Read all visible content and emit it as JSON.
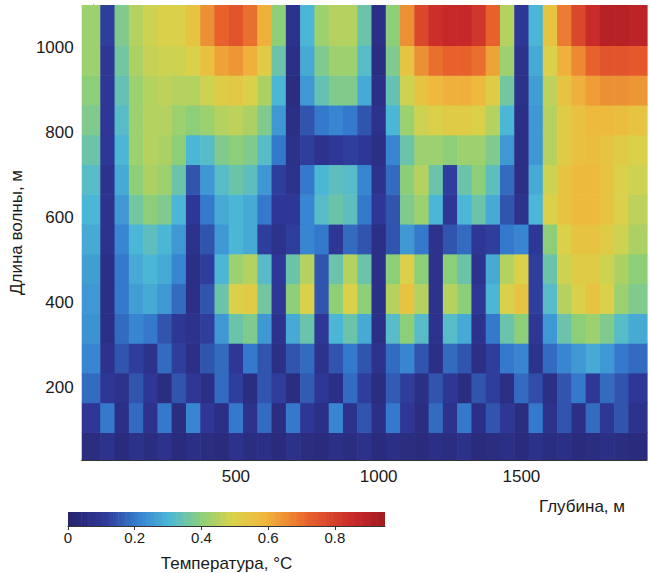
{
  "chart_data": {
    "type": "heatmap",
    "x_label": "Глубина, м",
    "y_label": "Длина волны, м",
    "xlim": [
      -40,
      1940
    ],
    "xticks": [
      500,
      1000,
      1500
    ],
    "ylim": [
      30,
      1100
    ],
    "yticks": [
      200,
      400,
      600,
      800,
      1000
    ],
    "x": [
      0,
      50,
      100,
      150,
      200,
      250,
      300,
      350,
      400,
      450,
      500,
      550,
      600,
      650,
      700,
      750,
      800,
      850,
      900,
      950,
      1000,
      1050,
      1100,
      1150,
      1200,
      1250,
      1300,
      1350,
      1400,
      1450,
      1500,
      1550,
      1600,
      1650,
      1700,
      1750,
      1800,
      1850,
      1900
    ],
    "y": [
      60,
      130,
      200,
      270,
      340,
      410,
      480,
      550,
      620,
      690,
      760,
      830,
      900,
      970,
      1040
    ],
    "values": [
      [
        0.05,
        0.08,
        0.04,
        0.07,
        0.05,
        0.08,
        0.04,
        0.06,
        0.05,
        0.04,
        0.08,
        0.05,
        0.06,
        0.04,
        0.07,
        0.05,
        0.04,
        0.06,
        0.05,
        0.07,
        0.04,
        0.06,
        0.05,
        0.04,
        0.06,
        0.05,
        0.07,
        0.04,
        0.05,
        0.06,
        0.04,
        0.07,
        0.05,
        0.06,
        0.04,
        0.05,
        0.06,
        0.05,
        0.04
      ],
      [
        0.1,
        0.2,
        0.06,
        0.18,
        0.08,
        0.2,
        0.05,
        0.22,
        0.1,
        0.06,
        0.2,
        0.08,
        0.18,
        0.05,
        0.2,
        0.1,
        0.06,
        0.22,
        0.08,
        0.15,
        0.06,
        0.2,
        0.1,
        0.05,
        0.18,
        0.08,
        0.2,
        0.06,
        0.15,
        0.1,
        0.05,
        0.2,
        0.08,
        0.15,
        0.06,
        0.18,
        0.1,
        0.15,
        0.08
      ],
      [
        0.18,
        0.1,
        0.08,
        0.15,
        0.1,
        0.05,
        0.15,
        0.1,
        0.06,
        0.18,
        0.12,
        0.05,
        0.15,
        0.12,
        0.05,
        0.16,
        0.1,
        0.06,
        0.18,
        0.12,
        0.05,
        0.16,
        0.12,
        0.06,
        0.15,
        0.1,
        0.05,
        0.15,
        0.12,
        0.06,
        0.18,
        0.14,
        0.06,
        0.15,
        0.2,
        0.1,
        0.18,
        0.15,
        0.1
      ],
      [
        0.22,
        0.08,
        0.15,
        0.12,
        0.08,
        0.18,
        0.12,
        0.06,
        0.15,
        0.18,
        0.1,
        0.2,
        0.15,
        0.06,
        0.15,
        0.18,
        0.08,
        0.15,
        0.2,
        0.15,
        0.08,
        0.18,
        0.22,
        0.15,
        0.06,
        0.18,
        0.15,
        0.06,
        0.12,
        0.2,
        0.22,
        0.08,
        0.18,
        0.22,
        0.25,
        0.28,
        0.25,
        0.2,
        0.18
      ],
      [
        0.24,
        0.06,
        0.18,
        0.22,
        0.2,
        0.15,
        0.1,
        0.08,
        0.12,
        0.25,
        0.35,
        0.38,
        0.25,
        0.08,
        0.28,
        0.35,
        0.1,
        0.3,
        0.35,
        0.28,
        0.06,
        0.32,
        0.4,
        0.32,
        0.08,
        0.32,
        0.28,
        0.08,
        0.2,
        0.35,
        0.4,
        0.1,
        0.25,
        0.35,
        0.4,
        0.42,
        0.38,
        0.32,
        0.28
      ],
      [
        0.25,
        0.06,
        0.2,
        0.26,
        0.28,
        0.25,
        0.18,
        0.06,
        0.15,
        0.35,
        0.5,
        0.52,
        0.36,
        0.1,
        0.4,
        0.5,
        0.15,
        0.4,
        0.5,
        0.4,
        0.06,
        0.45,
        0.55,
        0.45,
        0.08,
        0.45,
        0.4,
        0.1,
        0.3,
        0.5,
        0.55,
        0.12,
        0.32,
        0.45,
        0.5,
        0.55,
        0.5,
        0.42,
        0.38
      ],
      [
        0.26,
        0.06,
        0.2,
        0.28,
        0.3,
        0.28,
        0.22,
        0.06,
        0.12,
        0.3,
        0.42,
        0.45,
        0.32,
        0.1,
        0.35,
        0.45,
        0.15,
        0.35,
        0.45,
        0.35,
        0.06,
        0.4,
        0.5,
        0.4,
        0.08,
        0.4,
        0.35,
        0.08,
        0.28,
        0.45,
        0.5,
        0.12,
        0.35,
        0.48,
        0.52,
        0.52,
        0.48,
        0.44,
        0.4
      ],
      [
        0.28,
        0.08,
        0.22,
        0.3,
        0.33,
        0.3,
        0.25,
        0.08,
        0.15,
        0.25,
        0.3,
        0.28,
        0.12,
        0.08,
        0.12,
        0.22,
        0.2,
        0.1,
        0.18,
        0.15,
        0.06,
        0.15,
        0.25,
        0.2,
        0.08,
        0.15,
        0.18,
        0.1,
        0.12,
        0.2,
        0.22,
        0.1,
        0.4,
        0.5,
        0.55,
        0.55,
        0.52,
        0.48,
        0.44
      ],
      [
        0.3,
        0.08,
        0.25,
        0.36,
        0.4,
        0.38,
        0.3,
        0.1,
        0.2,
        0.28,
        0.3,
        0.28,
        0.2,
        0.1,
        0.1,
        0.22,
        0.32,
        0.35,
        0.33,
        0.2,
        0.1,
        0.15,
        0.38,
        0.42,
        0.3,
        0.1,
        0.3,
        0.35,
        0.28,
        0.15,
        0.08,
        0.3,
        0.5,
        0.55,
        0.58,
        0.58,
        0.55,
        0.5,
        0.46
      ],
      [
        0.32,
        0.08,
        0.28,
        0.4,
        0.44,
        0.42,
        0.35,
        0.15,
        0.25,
        0.32,
        0.35,
        0.33,
        0.25,
        0.12,
        0.08,
        0.2,
        0.3,
        0.33,
        0.32,
        0.22,
        0.08,
        0.18,
        0.4,
        0.45,
        0.35,
        0.12,
        0.35,
        0.4,
        0.33,
        0.18,
        0.06,
        0.28,
        0.48,
        0.55,
        0.58,
        0.58,
        0.55,
        0.5,
        0.48
      ],
      [
        0.35,
        0.1,
        0.3,
        0.42,
        0.45,
        0.44,
        0.4,
        0.3,
        0.32,
        0.38,
        0.4,
        0.38,
        0.32,
        0.2,
        0.07,
        0.12,
        0.08,
        0.1,
        0.12,
        0.1,
        0.06,
        0.22,
        0.35,
        0.42,
        0.42,
        0.4,
        0.42,
        0.42,
        0.38,
        0.25,
        0.06,
        0.25,
        0.45,
        0.52,
        0.56,
        0.57,
        0.55,
        0.52,
        0.5
      ],
      [
        0.38,
        0.1,
        0.32,
        0.42,
        0.45,
        0.45,
        0.42,
        0.4,
        0.42,
        0.45,
        0.46,
        0.44,
        0.38,
        0.25,
        0.06,
        0.15,
        0.2,
        0.22,
        0.2,
        0.15,
        0.08,
        0.3,
        0.42,
        0.48,
        0.5,
        0.52,
        0.52,
        0.5,
        0.45,
        0.3,
        0.06,
        0.25,
        0.45,
        0.52,
        0.56,
        0.58,
        0.58,
        0.57,
        0.55
      ],
      [
        0.4,
        0.1,
        0.34,
        0.42,
        0.45,
        0.46,
        0.45,
        0.45,
        0.48,
        0.52,
        0.53,
        0.5,
        0.44,
        0.3,
        0.05,
        0.25,
        0.34,
        0.38,
        0.38,
        0.28,
        0.06,
        0.34,
        0.48,
        0.55,
        0.58,
        0.6,
        0.6,
        0.58,
        0.52,
        0.36,
        0.07,
        0.26,
        0.46,
        0.55,
        0.6,
        0.63,
        0.65,
        0.65,
        0.64
      ],
      [
        0.42,
        0.1,
        0.36,
        0.44,
        0.47,
        0.48,
        0.48,
        0.5,
        0.56,
        0.62,
        0.64,
        0.6,
        0.52,
        0.35,
        0.06,
        0.28,
        0.38,
        0.42,
        0.42,
        0.32,
        0.05,
        0.38,
        0.55,
        0.65,
        0.7,
        0.72,
        0.72,
        0.7,
        0.62,
        0.42,
        0.08,
        0.28,
        0.5,
        0.6,
        0.66,
        0.72,
        0.75,
        0.75,
        0.74
      ],
      [
        0.42,
        0.12,
        0.38,
        0.45,
        0.48,
        0.5,
        0.5,
        0.55,
        0.65,
        0.72,
        0.75,
        0.7,
        0.6,
        0.4,
        0.08,
        0.3,
        0.42,
        0.45,
        0.45,
        0.35,
        0.06,
        0.4,
        0.65,
        0.78,
        0.84,
        0.86,
        0.86,
        0.82,
        0.72,
        0.45,
        0.1,
        0.3,
        0.55,
        0.68,
        0.78,
        0.85,
        0.9,
        0.9,
        0.88
      ]
    ],
    "colorbar": {
      "label": "Температура, °C",
      "range": [
        0,
        0.95
      ],
      "ticks": [
        0,
        0.2,
        0.4,
        0.6,
        0.8
      ]
    }
  }
}
